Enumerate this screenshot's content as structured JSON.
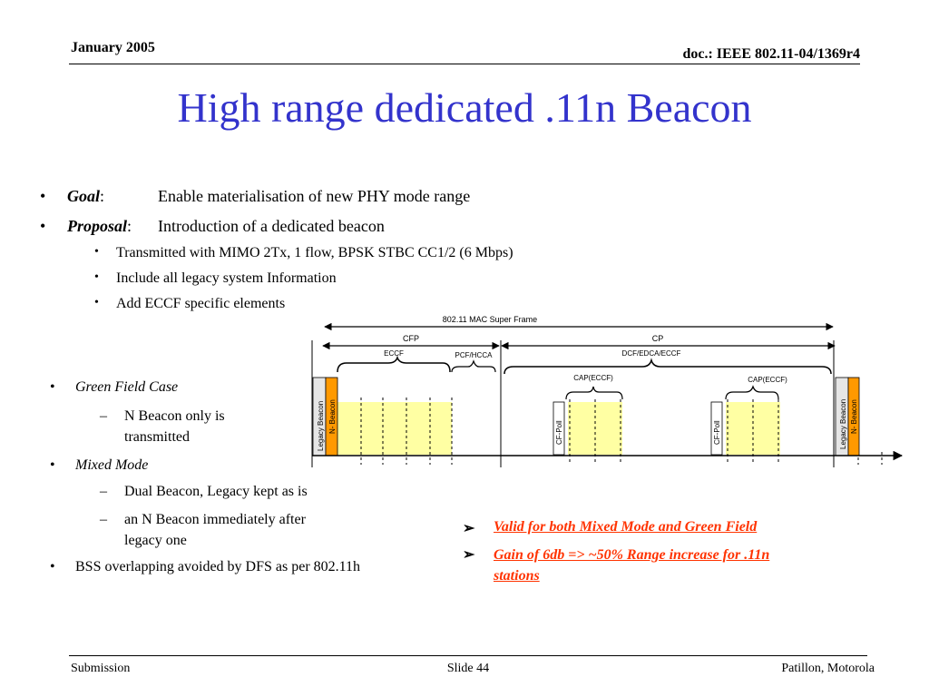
{
  "header": {
    "date": "January 2005",
    "doc_id": "doc.: IEEE 802.11-04/1369r4"
  },
  "title": "High range dedicated .11n Beacon",
  "bullets": {
    "goal_label": "Goal",
    "goal_colon": ":",
    "goal_text": "Enable materialisation of new PHY mode range",
    "proposal_label": "Proposal",
    "proposal_colon": ":",
    "proposal_text": "Introduction of a dedicated beacon",
    "sub_items": [
      "Transmitted with MIMO 2Tx, 1 flow, BPSK STBC CC1/2 (6 Mbps)",
      "Include all legacy system Information",
      "Add ECCF specific elements"
    ]
  },
  "cases": {
    "green_field_title": "Green Field Case",
    "green_field_item": [
      "N Beacon only is",
      "transmitted"
    ],
    "mixed_mode_title": "Mixed Mode",
    "mixed_mode_item1": "Dual Beacon, Legacy kept as is",
    "mixed_mode_item2": [
      "an N Beacon immediately after",
      "legacy one"
    ],
    "bss": "BSS overlapping avoided by DFS as per 802.11h"
  },
  "annotations": [
    "Valid for both Mixed Mode and Green Field",
    [
      "Gain of 6db => ~50% Range increase for .11n",
      "stations"
    ]
  ],
  "diagram": {
    "super_frame": "802.11 MAC Super Frame",
    "cfp": "CFP",
    "cp": "CP",
    "eccf": "ECCF",
    "pcf_hcca": "PCF/HCCA",
    "dcf_edca_eccf": "DCF/EDCA/ECCF",
    "cap_eccf": "CAP(ECCF)",
    "legacy_beacon": "Legacy Beacon",
    "n_beacon": "N- Beacon",
    "cf_poll": "CF-Poll",
    "colors": {
      "legacy_beacon": "#e6e6e6",
      "n_beacon": "#ff9900",
      "slot_fill": "#ffff99"
    }
  },
  "footer": {
    "left": "Submission",
    "center": "Slide 44",
    "right": "Patillon, Motorola"
  },
  "colors": {
    "title": "#3333cc",
    "annotation": "#ff3300"
  }
}
